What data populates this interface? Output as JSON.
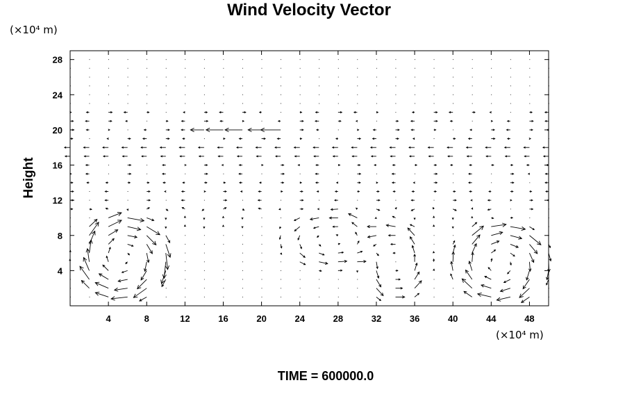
{
  "chart_data": {
    "type": "vector-field",
    "title": "Wind Velocity Vector",
    "ylabel": "Height",
    "xlabel": "",
    "x_unit": "(×10⁴ m)",
    "y_unit": "(×10⁴ m)",
    "xlim": [
      0,
      50
    ],
    "ylim": [
      0,
      29
    ],
    "x_ticks": [
      4,
      8,
      12,
      16,
      20,
      24,
      28,
      32,
      36,
      40,
      44,
      48
    ],
    "y_ticks": [
      4,
      8,
      12,
      16,
      20,
      24,
      28
    ],
    "grid": false,
    "legend": "none",
    "footer": "TIME = 600000.0",
    "cells": [
      {
        "cx": 5.5,
        "cy": 5.5,
        "rx": 4.5,
        "ry": 4.5,
        "dir": -1,
        "s": 1.8
      },
      {
        "cx": 34.0,
        "cy": 5.0,
        "rx": 3.3,
        "ry": 4.2,
        "dir": 1,
        "s": 1.4
      },
      {
        "cx": 45.0,
        "cy": 4.8,
        "rx": 4.6,
        "ry": 4.3,
        "dir": -1,
        "s": 1.6
      },
      {
        "cx": 27.5,
        "cy": 7.5,
        "rx": 5.0,
        "ry": 3.0,
        "dir": 1,
        "s": 1.0
      }
    ],
    "jets": [
      {
        "y": 20.0,
        "x0": 13.0,
        "x1": 23.0,
        "u": -2.6
      },
      {
        "y": 18.0,
        "x0": 0.0,
        "x1": 50.0,
        "u": -0.9
      },
      {
        "y": 17.0,
        "x0": 0.0,
        "x1": 50.0,
        "u": -0.8
      }
    ]
  }
}
